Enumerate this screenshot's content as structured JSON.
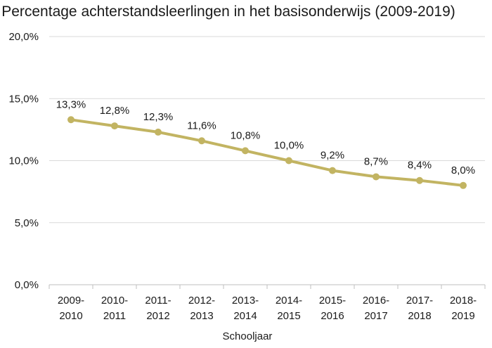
{
  "chart_data": {
    "type": "line",
    "title": "Percentage achterstandsleerlingen in het basisonderwijs (2009-2019)",
    "xlabel": "Schooljaar",
    "ylabel": "",
    "ylim": [
      0,
      20
    ],
    "yticks": [
      "0,0%",
      "5,0%",
      "10,0%",
      "15,0%",
      "20,0%"
    ],
    "categories": [
      [
        "2009-",
        "2010"
      ],
      [
        "2010-",
        "2011"
      ],
      [
        "2011-",
        "2012"
      ],
      [
        "2012-",
        "2013"
      ],
      [
        "2013-",
        "2014"
      ],
      [
        "2014-",
        "2015"
      ],
      [
        "2015-",
        "2016"
      ],
      [
        "2016-",
        "2017"
      ],
      [
        "2017-",
        "2018"
      ],
      [
        "2018-",
        "2019"
      ]
    ],
    "series": [
      {
        "values": [
          13.3,
          12.8,
          12.3,
          11.6,
          10.8,
          10.0,
          9.2,
          8.7,
          8.4,
          8.0
        ],
        "labels": [
          "13,3%",
          "12,8%",
          "12,3%",
          "11,6%",
          "10,8%",
          "10,0%",
          "9,2%",
          "8,7%",
          "8,4%",
          "8,0%"
        ],
        "color": "#c2b462"
      }
    ],
    "grid": true,
    "legend": "none"
  }
}
